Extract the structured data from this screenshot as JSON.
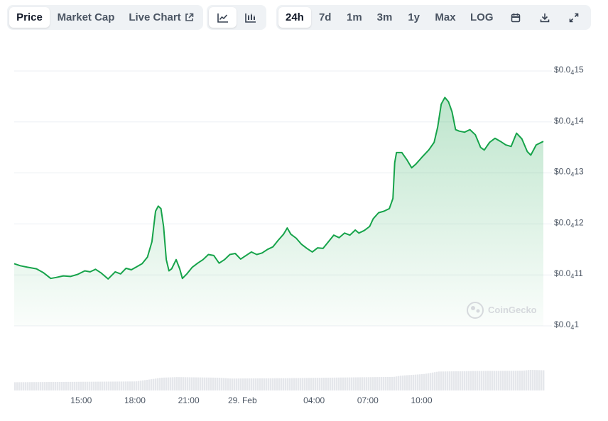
{
  "toolbar": {
    "metric_tabs": [
      {
        "label": "Price",
        "active": true
      },
      {
        "label": "Market Cap",
        "active": false
      },
      {
        "label": "Live Chart",
        "active": false
      }
    ],
    "chart_style_icons": [
      "line-chart-icon",
      "candlestick-chart-icon"
    ],
    "range_tabs": [
      {
        "label": "24h",
        "active": true
      },
      {
        "label": "7d",
        "active": false
      },
      {
        "label": "1m",
        "active": false
      },
      {
        "label": "3m",
        "active": false
      },
      {
        "label": "1y",
        "active": false
      },
      {
        "label": "Max",
        "active": false
      },
      {
        "label": "LOG",
        "active": false
      }
    ],
    "action_icons": [
      "calendar-icon",
      "download-icon",
      "expand-icon"
    ]
  },
  "watermark": "CoinGecko",
  "colors": {
    "line": "#16a34a",
    "area_top": "#16a34a",
    "volume": "#e5e7eb",
    "grid": "#eceff3"
  },
  "chart_data": {
    "type": "line",
    "ylim": [
      1e-05,
      1.5e-05
    ],
    "y_ticks": [
      {
        "value": 1.5e-05,
        "prefix": "$0.0",
        "sub": "4",
        "digits": "15"
      },
      {
        "value": 1.4e-05,
        "prefix": "$0.0",
        "sub": "4",
        "digits": "14"
      },
      {
        "value": 1.3e-05,
        "prefix": "$0.0",
        "sub": "4",
        "digits": "13"
      },
      {
        "value": 1.2e-05,
        "prefix": "$0.0",
        "sub": "4",
        "digits": "12"
      },
      {
        "value": 1.1e-05,
        "prefix": "$0.0",
        "sub": "4",
        "digits": "11"
      },
      {
        "value": 1e-05,
        "prefix": "$0.0",
        "sub": "4",
        "digits": "1"
      }
    ],
    "x_ticks": [
      {
        "label": "15:00",
        "hour": 15
      },
      {
        "label": "18:00",
        "hour": 18
      },
      {
        "label": "21:00",
        "hour": 21
      },
      {
        "label": "29. Feb",
        "hour": 24
      },
      {
        "label": "04:00",
        "hour": 28
      },
      {
        "label": "07:00",
        "hour": 31
      },
      {
        "label": "10:00",
        "hour": 34
      }
    ],
    "x_unit": "hours since 28 Feb 00:00",
    "series": [
      {
        "points": [
          [
            11.26,
            1.122e-05
          ],
          [
            11.6,
            1.118e-05
          ],
          [
            12.0,
            1.115e-05
          ],
          [
            12.5,
            1.112e-05
          ],
          [
            12.9,
            1.104e-05
          ],
          [
            13.3,
            1.093e-05
          ],
          [
            13.6,
            1.095e-05
          ],
          [
            14.0,
            1.098e-05
          ],
          [
            14.4,
            1.097e-05
          ],
          [
            14.8,
            1.101e-05
          ],
          [
            15.2,
            1.108e-05
          ],
          [
            15.5,
            1.106e-05
          ],
          [
            15.8,
            1.111e-05
          ],
          [
            16.1,
            1.104e-05
          ],
          [
            16.5,
            1.092e-05
          ],
          [
            16.9,
            1.106e-05
          ],
          [
            17.2,
            1.102e-05
          ],
          [
            17.5,
            1.113e-05
          ],
          [
            17.8,
            1.11e-05
          ],
          [
            18.1,
            1.116e-05
          ],
          [
            18.4,
            1.122e-05
          ],
          [
            18.7,
            1.135e-05
          ],
          [
            18.95,
            1.165e-05
          ],
          [
            19.15,
            1.225e-05
          ],
          [
            19.3,
            1.235e-05
          ],
          [
            19.45,
            1.23e-05
          ],
          [
            19.6,
            1.195e-05
          ],
          [
            19.75,
            1.13e-05
          ],
          [
            19.9,
            1.108e-05
          ],
          [
            20.05,
            1.112e-05
          ],
          [
            20.3,
            1.13e-05
          ],
          [
            20.5,
            1.112e-05
          ],
          [
            20.65,
            1.093e-05
          ],
          [
            20.9,
            1.102e-05
          ],
          [
            21.2,
            1.115e-05
          ],
          [
            21.5,
            1.123e-05
          ],
          [
            21.8,
            1.13e-05
          ],
          [
            22.1,
            1.14e-05
          ],
          [
            22.4,
            1.138e-05
          ],
          [
            22.7,
            1.123e-05
          ],
          [
            23.0,
            1.13e-05
          ],
          [
            23.3,
            1.14e-05
          ],
          [
            23.6,
            1.142e-05
          ],
          [
            23.9,
            1.131e-05
          ],
          [
            24.2,
            1.138e-05
          ],
          [
            24.5,
            1.145e-05
          ],
          [
            24.8,
            1.14e-05
          ],
          [
            25.1,
            1.143e-05
          ],
          [
            25.4,
            1.15e-05
          ],
          [
            25.7,
            1.155e-05
          ],
          [
            26.0,
            1.168e-05
          ],
          [
            26.3,
            1.18e-05
          ],
          [
            26.5,
            1.192e-05
          ],
          [
            26.7,
            1.18e-05
          ],
          [
            27.0,
            1.172e-05
          ],
          [
            27.3,
            1.16e-05
          ],
          [
            27.6,
            1.152e-05
          ],
          [
            27.9,
            1.145e-05
          ],
          [
            28.2,
            1.153e-05
          ],
          [
            28.5,
            1.152e-05
          ],
          [
            28.8,
            1.165e-05
          ],
          [
            29.1,
            1.178e-05
          ],
          [
            29.4,
            1.173e-05
          ],
          [
            29.7,
            1.182e-05
          ],
          [
            30.0,
            1.178e-05
          ],
          [
            30.3,
            1.188e-05
          ],
          [
            30.5,
            1.182e-05
          ],
          [
            30.8,
            1.187e-05
          ],
          [
            31.1,
            1.195e-05
          ],
          [
            31.3,
            1.21e-05
          ],
          [
            31.6,
            1.222e-05
          ],
          [
            31.9,
            1.225e-05
          ],
          [
            32.2,
            1.23e-05
          ],
          [
            32.4,
            1.25e-05
          ],
          [
            32.5,
            1.32e-05
          ],
          [
            32.6,
            1.34e-05
          ],
          [
            32.9,
            1.34e-05
          ],
          [
            33.2,
            1.325e-05
          ],
          [
            33.45,
            1.31e-05
          ],
          [
            33.7,
            1.318e-05
          ],
          [
            34.0,
            1.33e-05
          ],
          [
            34.4,
            1.345e-05
          ],
          [
            34.7,
            1.36e-05
          ],
          [
            34.9,
            1.39e-05
          ],
          [
            35.1,
            1.435e-05
          ],
          [
            35.3,
            1.448e-05
          ],
          [
            35.5,
            1.44e-05
          ],
          [
            35.7,
            1.42e-05
          ],
          [
            35.9,
            1.385e-05
          ],
          [
            36.1,
            1.382e-05
          ],
          [
            36.4,
            1.38e-05
          ],
          [
            36.7,
            1.385e-05
          ],
          [
            37.0,
            1.375e-05
          ],
          [
            37.3,
            1.35e-05
          ],
          [
            37.5,
            1.345e-05
          ],
          [
            37.8,
            1.36e-05
          ],
          [
            38.1,
            1.368e-05
          ],
          [
            38.4,
            1.362e-05
          ],
          [
            38.7,
            1.355e-05
          ],
          [
            39.0,
            1.352e-05
          ],
          [
            39.3,
            1.378e-05
          ],
          [
            39.6,
            1.367e-05
          ],
          [
            39.9,
            1.342e-05
          ],
          [
            40.1,
            1.335e-05
          ],
          [
            40.4,
            1.355e-05
          ],
          [
            40.8,
            1.362e-05
          ]
        ]
      }
    ],
    "volume_profile": [
      [
        11.26,
        0.4
      ],
      [
        18.0,
        0.44
      ],
      [
        18.9,
        0.55
      ],
      [
        19.4,
        0.62
      ],
      [
        20.3,
        0.65
      ],
      [
        22.7,
        0.62
      ],
      [
        23.3,
        0.58
      ],
      [
        26.6,
        0.6
      ],
      [
        28.5,
        0.62
      ],
      [
        32.4,
        0.66
      ],
      [
        32.8,
        0.72
      ],
      [
        34.1,
        0.8
      ],
      [
        34.9,
        0.92
      ],
      [
        37.2,
        0.95
      ],
      [
        39.6,
        0.96
      ],
      [
        40.0,
        1.0
      ],
      [
        40.8,
        0.98
      ]
    ],
    "grid": true
  }
}
